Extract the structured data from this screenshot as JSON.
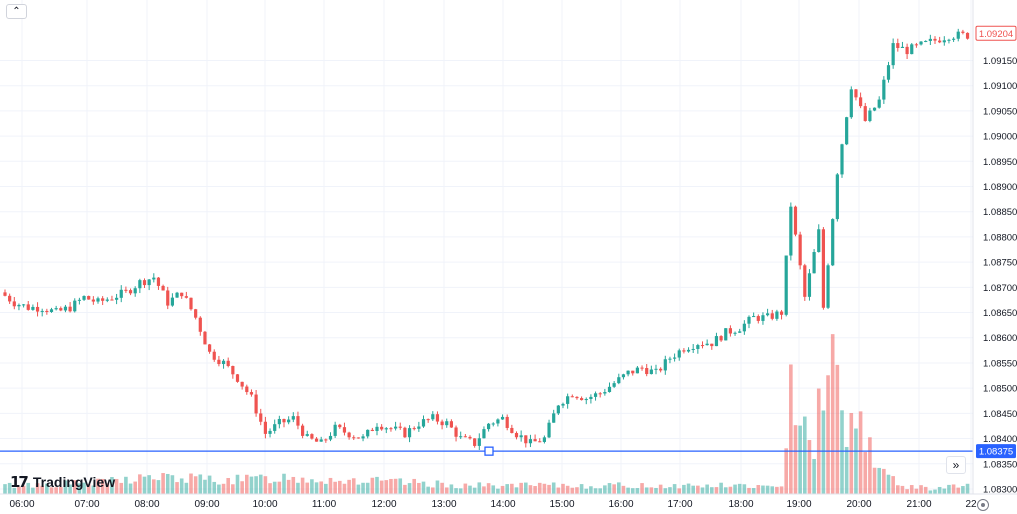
{
  "chart_data": {
    "type": "candlestick",
    "symbol_price": "1.09204",
    "crosshair_price": "1.08375",
    "price_axis": {
      "range": [
        1.0829,
        1.0927
      ],
      "ticks": [
        "1.09150",
        "1.09100",
        "1.09050",
        "1.09000",
        "1.08950",
        "1.08900",
        "1.08850",
        "1.08800",
        "1.08750",
        "1.08700",
        "1.08650",
        "1.08600",
        "1.08550",
        "1.08500",
        "1.08450",
        "1.08400",
        "1.08350",
        "1.08300"
      ]
    },
    "time_axis": {
      "labels": [
        "06:00",
        "07:00",
        "08:00",
        "09:00",
        "10:00",
        "11:00",
        "12:00",
        "13:00",
        "14:00",
        "15:00",
        "16:00",
        "17:00",
        "18:00",
        "19:00",
        "20:00",
        "21:00",
        "22"
      ]
    },
    "anchors": [
      [
        0,
        1.0869
      ],
      [
        3,
        1.0867
      ],
      [
        6,
        1.0866
      ],
      [
        9,
        1.0866
      ],
      [
        12,
        1.0865
      ],
      [
        15,
        1.0866
      ],
      [
        18,
        1.0868
      ],
      [
        21,
        1.0867
      ],
      [
        24,
        1.0868
      ],
      [
        27,
        1.0869
      ],
      [
        30,
        1.0871
      ],
      [
        33,
        1.0872
      ],
      [
        36,
        1.0867
      ],
      [
        39,
        1.0869
      ],
      [
        42,
        1.0864
      ],
      [
        45,
        1.0857
      ],
      [
        48,
        1.0855
      ],
      [
        51,
        1.0852
      ],
      [
        54,
        1.0848
      ],
      [
        57,
        1.0841
      ],
      [
        60,
        1.0843
      ],
      [
        63,
        1.0844
      ],
      [
        66,
        1.084
      ],
      [
        69,
        1.0839
      ],
      [
        72,
        1.0842
      ],
      [
        75,
        1.0841
      ],
      [
        78,
        1.084
      ],
      [
        81,
        1.0843
      ],
      [
        84,
        1.0842
      ],
      [
        87,
        1.0841
      ],
      [
        90,
        1.0843
      ],
      [
        93,
        1.0844
      ],
      [
        96,
        1.0843
      ],
      [
        99,
        1.084
      ],
      [
        102,
        1.0839
      ],
      [
        105,
        1.0843
      ],
      [
        108,
        1.0844
      ],
      [
        111,
        1.0841
      ],
      [
        114,
        1.0839
      ],
      [
        117,
        1.084
      ],
      [
        120,
        1.0847
      ],
      [
        123,
        1.0849
      ],
      [
        126,
        1.0848
      ],
      [
        129,
        1.0849
      ],
      [
        132,
        1.0851
      ],
      [
        135,
        1.0853
      ],
      [
        138,
        1.0854
      ],
      [
        141,
        1.0853
      ],
      [
        144,
        1.0856
      ],
      [
        147,
        1.0858
      ],
      [
        150,
        1.0859
      ],
      [
        153,
        1.0859
      ],
      [
        156,
        1.0861
      ],
      [
        159,
        1.0862
      ],
      [
        162,
        1.0864
      ],
      [
        165,
        1.0864
      ],
      [
        168,
        1.0865
      ],
      [
        170,
        1.0886
      ],
      [
        173,
        1.0868
      ],
      [
        176,
        1.0881
      ],
      [
        177,
        1.0866
      ],
      [
        180,
        1.0893
      ],
      [
        183,
        1.091
      ],
      [
        186,
        1.0903
      ],
      [
        189,
        1.0907
      ],
      [
        192,
        1.0918
      ],
      [
        195,
        1.0917
      ],
      [
        198,
        1.0918
      ],
      [
        201,
        1.0919
      ],
      [
        204,
        1.092
      ],
      [
        207,
        1.092
      ]
    ],
    "volume_anchors": [
      [
        0,
        3
      ],
      [
        20,
        4
      ],
      [
        30,
        6
      ],
      [
        50,
        5
      ],
      [
        60,
        6
      ],
      [
        100,
        3
      ],
      [
        140,
        3
      ],
      [
        160,
        3
      ],
      [
        167,
        2
      ],
      [
        169,
        45
      ],
      [
        171,
        35
      ],
      [
        174,
        18
      ],
      [
        176,
        45
      ],
      [
        178,
        45
      ],
      [
        181,
        26
      ],
      [
        184,
        26
      ],
      [
        188,
        10
      ],
      [
        192,
        3
      ],
      [
        199,
        2
      ],
      [
        207,
        3
      ]
    ]
  },
  "ui": {
    "logo_text": "TradingView",
    "logo_mark": "17",
    "collapse_glyph": "⌃",
    "scroll_glyph": "»"
  }
}
